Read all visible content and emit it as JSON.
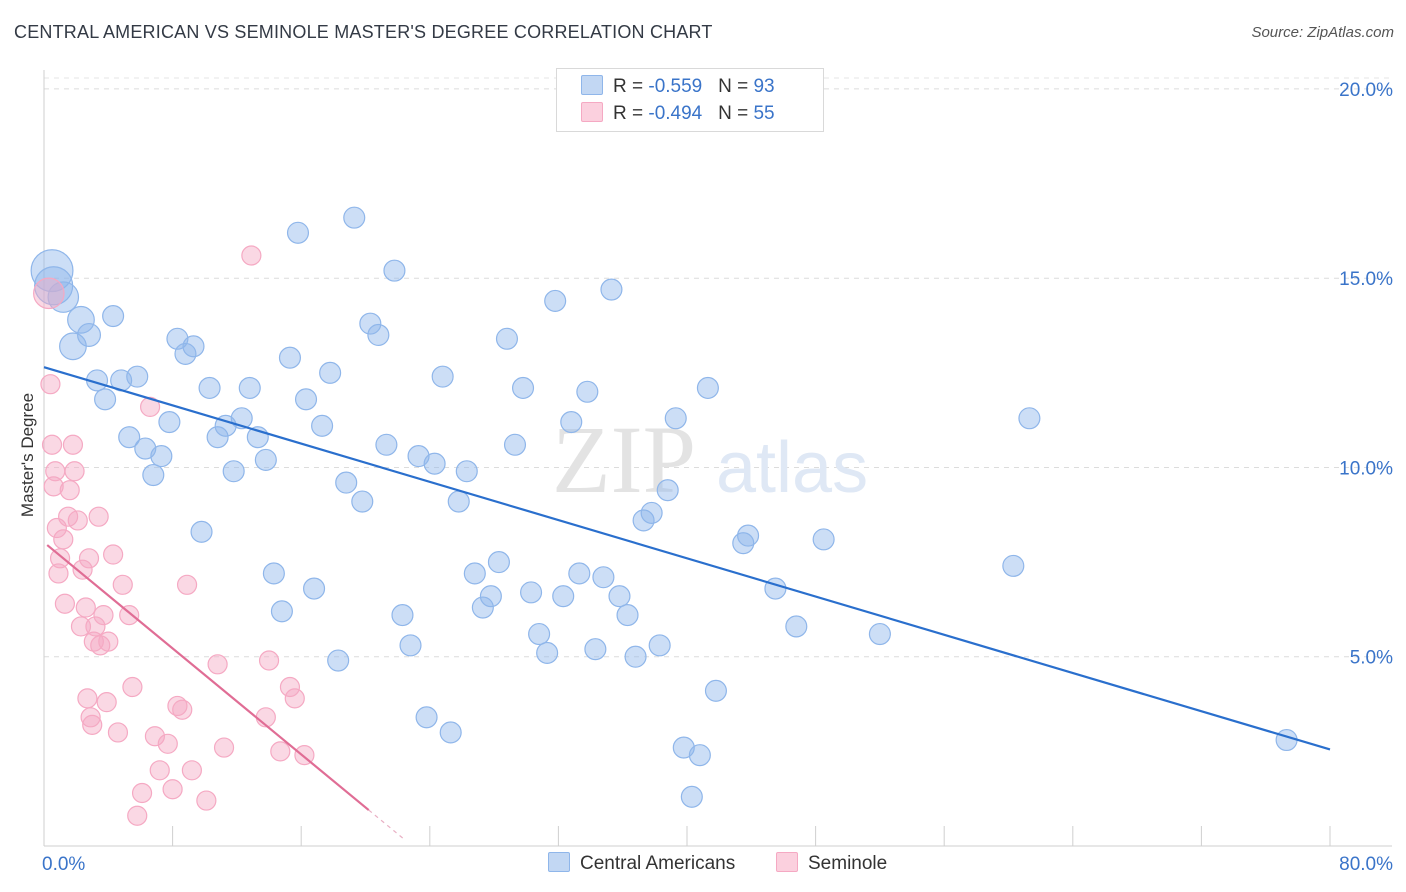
{
  "chart_data": {
    "type": "scatter",
    "title": "CENTRAL AMERICAN VS SEMINOLE MASTER'S DEGREE CORRELATION CHART",
    "source": "Source: ZipAtlas.com",
    "xlabel": "",
    "ylabel": "Master's Degree",
    "xlim": [
      0,
      80
    ],
    "ylim": [
      0,
      20.5
    ],
    "x_tick_labels": [
      "0.0%",
      "80.0%"
    ],
    "y_ticks": [
      5,
      10,
      15,
      20
    ],
    "y_tick_labels": [
      "5.0%",
      "10.0%",
      "15.0%",
      "20.0%"
    ],
    "grid": true,
    "watermark": "ZIPatlas",
    "legend": {
      "rows": [
        {
          "r_label": "R = ",
          "r_value": "-0.559",
          "n_label": "N = ",
          "n_value": "93"
        },
        {
          "r_label": "R = ",
          "r_value": "-0.494",
          "n_label": "N = ",
          "n_value": "55"
        }
      ]
    },
    "series": [
      {
        "name": "Central Americans",
        "color": "#8fb6ea",
        "line_color": "#2a6fcd",
        "trend": {
          "x0": 0,
          "y0": 12.65,
          "x1": 80,
          "y1": 2.55
        },
        "points": [
          [
            0.5,
            15.2,
            22
          ],
          [
            0.6,
            14.8,
            20
          ],
          [
            1.2,
            14.5,
            16
          ],
          [
            1.8,
            13.2,
            14
          ],
          [
            2.3,
            13.9,
            14
          ],
          [
            2.8,
            13.5,
            12
          ],
          [
            4.3,
            14.0,
            11
          ],
          [
            3.3,
            12.3,
            11
          ],
          [
            3.8,
            11.8,
            11
          ],
          [
            4.8,
            12.3,
            11
          ],
          [
            5.8,
            12.4,
            11
          ],
          [
            5.3,
            10.8,
            11
          ],
          [
            6.3,
            10.5,
            11
          ],
          [
            6.8,
            9.8,
            11
          ],
          [
            7.3,
            10.3,
            11
          ],
          [
            7.8,
            11.2,
            11
          ],
          [
            8.3,
            13.4,
            11
          ],
          [
            8.8,
            13.0,
            11
          ],
          [
            9.3,
            13.2,
            11
          ],
          [
            9.8,
            8.3,
            11
          ],
          [
            10.3,
            12.1,
            11
          ],
          [
            10.8,
            10.8,
            11
          ],
          [
            11.3,
            11.1,
            11
          ],
          [
            11.8,
            9.9,
            11
          ],
          [
            12.3,
            11.3,
            11
          ],
          [
            12.8,
            12.1,
            11
          ],
          [
            13.3,
            10.8,
            11
          ],
          [
            13.8,
            10.2,
            11
          ],
          [
            14.3,
            7.2,
            11
          ],
          [
            14.8,
            6.2,
            11
          ],
          [
            15.3,
            12.9,
            11
          ],
          [
            15.8,
            16.2,
            11
          ],
          [
            16.3,
            11.8,
            11
          ],
          [
            16.8,
            6.8,
            11
          ],
          [
            17.3,
            11.1,
            11
          ],
          [
            17.8,
            12.5,
            11
          ],
          [
            18.3,
            4.9,
            11
          ],
          [
            18.8,
            9.6,
            11
          ],
          [
            19.3,
            16.6,
            11
          ],
          [
            19.8,
            9.1,
            11
          ],
          [
            20.3,
            13.8,
            11
          ],
          [
            20.8,
            13.5,
            11
          ],
          [
            21.3,
            10.6,
            11
          ],
          [
            21.8,
            15.2,
            11
          ],
          [
            22.3,
            6.1,
            11
          ],
          [
            22.8,
            5.3,
            11
          ],
          [
            23.3,
            10.3,
            11
          ],
          [
            23.8,
            3.4,
            11
          ],
          [
            24.3,
            10.1,
            11
          ],
          [
            24.8,
            12.4,
            11
          ],
          [
            25.3,
            3.0,
            11
          ],
          [
            25.8,
            9.1,
            11
          ],
          [
            26.3,
            9.9,
            11
          ],
          [
            26.8,
            7.2,
            11
          ],
          [
            27.3,
            6.3,
            11
          ],
          [
            27.8,
            6.6,
            11
          ],
          [
            28.3,
            7.5,
            11
          ],
          [
            28.8,
            13.4,
            11
          ],
          [
            29.3,
            10.6,
            11
          ],
          [
            29.8,
            12.1,
            11
          ],
          [
            30.3,
            6.7,
            11
          ],
          [
            30.8,
            5.6,
            11
          ],
          [
            31.3,
            5.1,
            11
          ],
          [
            31.8,
            14.4,
            11
          ],
          [
            32.3,
            6.6,
            11
          ],
          [
            32.8,
            11.2,
            11
          ],
          [
            33.3,
            7.2,
            11
          ],
          [
            33.8,
            12.0,
            11
          ],
          [
            34.3,
            5.2,
            11
          ],
          [
            34.8,
            7.1,
            11
          ],
          [
            35.3,
            14.7,
            11
          ],
          [
            35.8,
            6.6,
            11
          ],
          [
            36.3,
            6.1,
            11
          ],
          [
            36.8,
            5.0,
            11
          ],
          [
            37.3,
            8.6,
            11
          ],
          [
            37.8,
            8.8,
            11
          ],
          [
            38.3,
            5.3,
            11
          ],
          [
            38.8,
            9.4,
            11
          ],
          [
            39.3,
            11.3,
            11
          ],
          [
            39.8,
            2.6,
            11
          ],
          [
            40.3,
            1.3,
            11
          ],
          [
            40.8,
            2.4,
            11
          ],
          [
            41.3,
            12.1,
            11
          ],
          [
            41.8,
            4.1,
            11
          ],
          [
            43.5,
            8.0,
            11
          ],
          [
            43.8,
            8.2,
            11
          ],
          [
            45.5,
            6.8,
            11
          ],
          [
            46.8,
            5.8,
            11
          ],
          [
            48.5,
            8.1,
            11
          ],
          [
            52.0,
            5.6,
            11
          ],
          [
            60.3,
            7.4,
            11
          ],
          [
            61.3,
            11.3,
            11
          ],
          [
            77.3,
            2.8,
            11
          ]
        ]
      },
      {
        "name": "Seminole",
        "color": "#f5a9c3",
        "line_color": "#e06d95",
        "trend": {
          "x0": 0.2,
          "y0": 7.95,
          "x1": 20.2,
          "y1": 0.95
        },
        "points": [
          [
            0.3,
            14.6,
            16
          ],
          [
            0.4,
            12.2,
            10
          ],
          [
            0.5,
            10.6,
            10
          ],
          [
            0.6,
            9.5,
            10
          ],
          [
            0.7,
            9.9,
            10
          ],
          [
            0.8,
            8.4,
            10
          ],
          [
            0.9,
            7.2,
            10
          ],
          [
            1.0,
            7.6,
            10
          ],
          [
            1.2,
            8.1,
            10
          ],
          [
            1.3,
            6.4,
            10
          ],
          [
            1.5,
            8.7,
            10
          ],
          [
            1.6,
            9.4,
            10
          ],
          [
            1.8,
            10.6,
            10
          ],
          [
            1.9,
            9.9,
            10
          ],
          [
            2.1,
            8.6,
            10
          ],
          [
            2.3,
            5.8,
            10
          ],
          [
            2.4,
            7.3,
            10
          ],
          [
            2.6,
            6.3,
            10
          ],
          [
            2.7,
            3.9,
            10
          ],
          [
            2.8,
            7.6,
            10
          ],
          [
            2.9,
            3.4,
            10
          ],
          [
            3.0,
            3.2,
            10
          ],
          [
            3.1,
            5.4,
            10
          ],
          [
            3.2,
            5.8,
            10
          ],
          [
            3.4,
            8.7,
            10
          ],
          [
            3.5,
            5.3,
            10
          ],
          [
            3.7,
            6.1,
            10
          ],
          [
            3.9,
            3.8,
            10
          ],
          [
            4.0,
            5.4,
            10
          ],
          [
            4.3,
            7.7,
            10
          ],
          [
            4.6,
            3.0,
            10
          ],
          [
            4.9,
            6.9,
            10
          ],
          [
            5.3,
            6.1,
            10
          ],
          [
            5.5,
            4.2,
            10
          ],
          [
            6.1,
            1.4,
            10
          ],
          [
            6.6,
            11.6,
            10
          ],
          [
            6.9,
            2.9,
            10
          ],
          [
            7.2,
            2.0,
            10
          ],
          [
            7.7,
            2.7,
            10
          ],
          [
            8.0,
            1.5,
            10
          ],
          [
            8.3,
            3.7,
            10
          ],
          [
            8.6,
            3.6,
            10
          ],
          [
            8.9,
            6.9,
            10
          ],
          [
            9.2,
            2.0,
            10
          ],
          [
            10.1,
            1.2,
            10
          ],
          [
            10.8,
            4.8,
            10
          ],
          [
            11.2,
            2.6,
            10
          ],
          [
            12.9,
            15.6,
            10
          ],
          [
            13.8,
            3.4,
            10
          ],
          [
            14.0,
            4.9,
            10
          ],
          [
            14.7,
            2.5,
            10
          ],
          [
            15.3,
            4.2,
            10
          ],
          [
            15.6,
            3.9,
            10
          ],
          [
            16.2,
            2.4,
            10
          ],
          [
            5.8,
            0.8,
            10
          ]
        ]
      }
    ]
  }
}
